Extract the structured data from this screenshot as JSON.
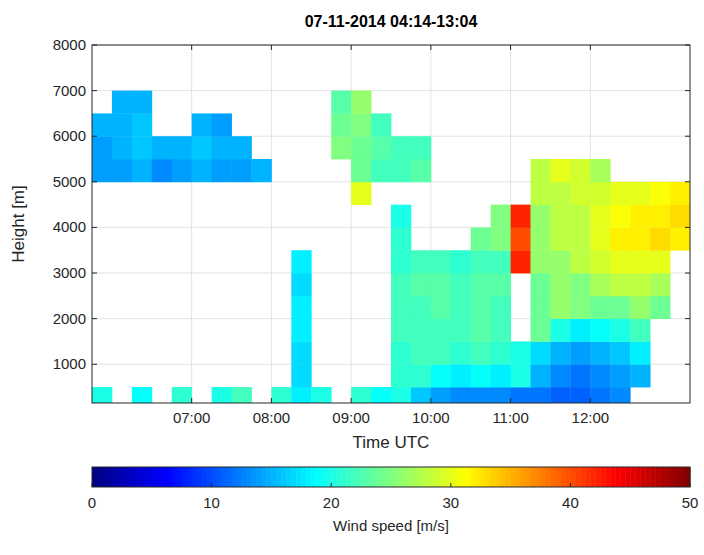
{
  "chart_data": {
    "type": "heatmap",
    "title": "07-11-2014 04:14-13:04",
    "xlabel": "Time UTC",
    "ylabel": "Height [m]",
    "xlim": [
      5.75,
      13.25
    ],
    "xticks": [
      {
        "value": 7,
        "label": "07:00"
      },
      {
        "value": 8,
        "label": "08:00"
      },
      {
        "value": 9,
        "label": "09:00"
      },
      {
        "value": 10,
        "label": "10:00"
      },
      {
        "value": 11,
        "label": "11:00"
      },
      {
        "value": 12,
        "label": "12:00"
      }
    ],
    "ylim": [
      150,
      8000
    ],
    "yticks": [
      1000,
      2000,
      3000,
      4000,
      5000,
      6000,
      7000,
      8000
    ],
    "grid": true,
    "cells": {
      "x_edges": [
        5.75,
        6,
        6.25,
        6.5,
        6.75,
        7,
        7.25,
        7.5,
        7.75,
        8,
        8.25,
        8.5,
        8.75,
        9,
        9.25,
        9.5,
        9.75,
        10,
        10.25,
        10.5,
        10.75,
        11,
        11.25,
        11.5,
        11.75,
        12,
        12.25,
        12.5,
        12.75,
        13,
        13.25
      ],
      "y_edges": [
        150,
        500,
        1000,
        1500,
        2000,
        2500,
        3000,
        3500,
        4000,
        4500,
        5000,
        5500,
        6000,
        6500,
        7000
      ],
      "z": [
        [
          20,
          null,
          19,
          null,
          21,
          null,
          20,
          22,
          null,
          21,
          18,
          20,
          null,
          21,
          19,
          20,
          16,
          14,
          13,
          13,
          13,
          12,
          12,
          11,
          11,
          12,
          13,
          null,
          null,
          null
        ],
        [
          null,
          null,
          null,
          null,
          null,
          null,
          null,
          null,
          null,
          null,
          17,
          null,
          null,
          null,
          null,
          21,
          21,
          19,
          18,
          19,
          18,
          20,
          15,
          13,
          12,
          13,
          14,
          15,
          null,
          null
        ],
        [
          null,
          null,
          null,
          null,
          null,
          null,
          null,
          null,
          null,
          null,
          17,
          null,
          null,
          null,
          null,
          21,
          22,
          22,
          21,
          22,
          21,
          20,
          17,
          15,
          14,
          15,
          16,
          18,
          null,
          null
        ],
        [
          null,
          null,
          null,
          null,
          null,
          null,
          null,
          null,
          null,
          null,
          18,
          null,
          null,
          null,
          null,
          22,
          22,
          22,
          22,
          23,
          22,
          null,
          24,
          20,
          18,
          19,
          20,
          22,
          null,
          null
        ],
        [
          null,
          null,
          null,
          null,
          null,
          null,
          null,
          null,
          null,
          null,
          18,
          null,
          null,
          null,
          null,
          22,
          22,
          23,
          22,
          23,
          22,
          null,
          24,
          26,
          25,
          24,
          24,
          26,
          24,
          null
        ],
        [
          null,
          null,
          null,
          null,
          null,
          null,
          null,
          null,
          null,
          null,
          17,
          null,
          null,
          null,
          null,
          22,
          23,
          23,
          22,
          23,
          23,
          null,
          24,
          26,
          25,
          27,
          28,
          28,
          27,
          null
        ],
        [
          null,
          null,
          null,
          null,
          null,
          null,
          null,
          null,
          null,
          null,
          18,
          null,
          null,
          null,
          null,
          21,
          22,
          22,
          21,
          22,
          22,
          42,
          26,
          26,
          28,
          29,
          30,
          30,
          30,
          null
        ],
        [
          null,
          null,
          null,
          null,
          null,
          null,
          null,
          null,
          null,
          null,
          null,
          null,
          null,
          null,
          null,
          21,
          null,
          null,
          null,
          24,
          25,
          40,
          26,
          28,
          28,
          30,
          32,
          32,
          33,
          32
        ],
        [
          null,
          null,
          null,
          null,
          null,
          null,
          null,
          null,
          null,
          null,
          null,
          null,
          null,
          null,
          null,
          20,
          null,
          null,
          null,
          null,
          25,
          42,
          26,
          28,
          28,
          30,
          31,
          32,
          32,
          33
        ],
        [
          null,
          null,
          null,
          null,
          null,
          null,
          null,
          null,
          null,
          null,
          null,
          null,
          null,
          30,
          null,
          null,
          null,
          null,
          null,
          null,
          null,
          null,
          28,
          28,
          29,
          29,
          30,
          30,
          31,
          32
        ],
        [
          14,
          14,
          15,
          13,
          14,
          15,
          14,
          14,
          15,
          null,
          null,
          null,
          null,
          24,
          22,
          22,
          23,
          null,
          null,
          null,
          null,
          null,
          28,
          30,
          29,
          27,
          null,
          null,
          null,
          null
        ],
        [
          14,
          15,
          16,
          15,
          15,
          16,
          15,
          15,
          null,
          null,
          null,
          null,
          25,
          24,
          23,
          22,
          22,
          null,
          null,
          null,
          null,
          null,
          null,
          null,
          null,
          null,
          null,
          null,
          null,
          null
        ],
        [
          15,
          15,
          16,
          null,
          null,
          15,
          14,
          null,
          null,
          null,
          null,
          null,
          24,
          25,
          22,
          null,
          null,
          null,
          null,
          null,
          null,
          null,
          null,
          null,
          null,
          null,
          null,
          null,
          null,
          null
        ],
        [
          null,
          15,
          15,
          null,
          null,
          null,
          null,
          null,
          null,
          null,
          null,
          null,
          23,
          26,
          null,
          null,
          null,
          null,
          null,
          null,
          null,
          null,
          null,
          null,
          null,
          null,
          null,
          null,
          null,
          null
        ]
      ]
    },
    "colorbar": {
      "label": "Wind speed [m/s]",
      "lim": [
        0,
        50
      ],
      "ticks": [
        0,
        10,
        20,
        30,
        40,
        50
      ]
    }
  }
}
